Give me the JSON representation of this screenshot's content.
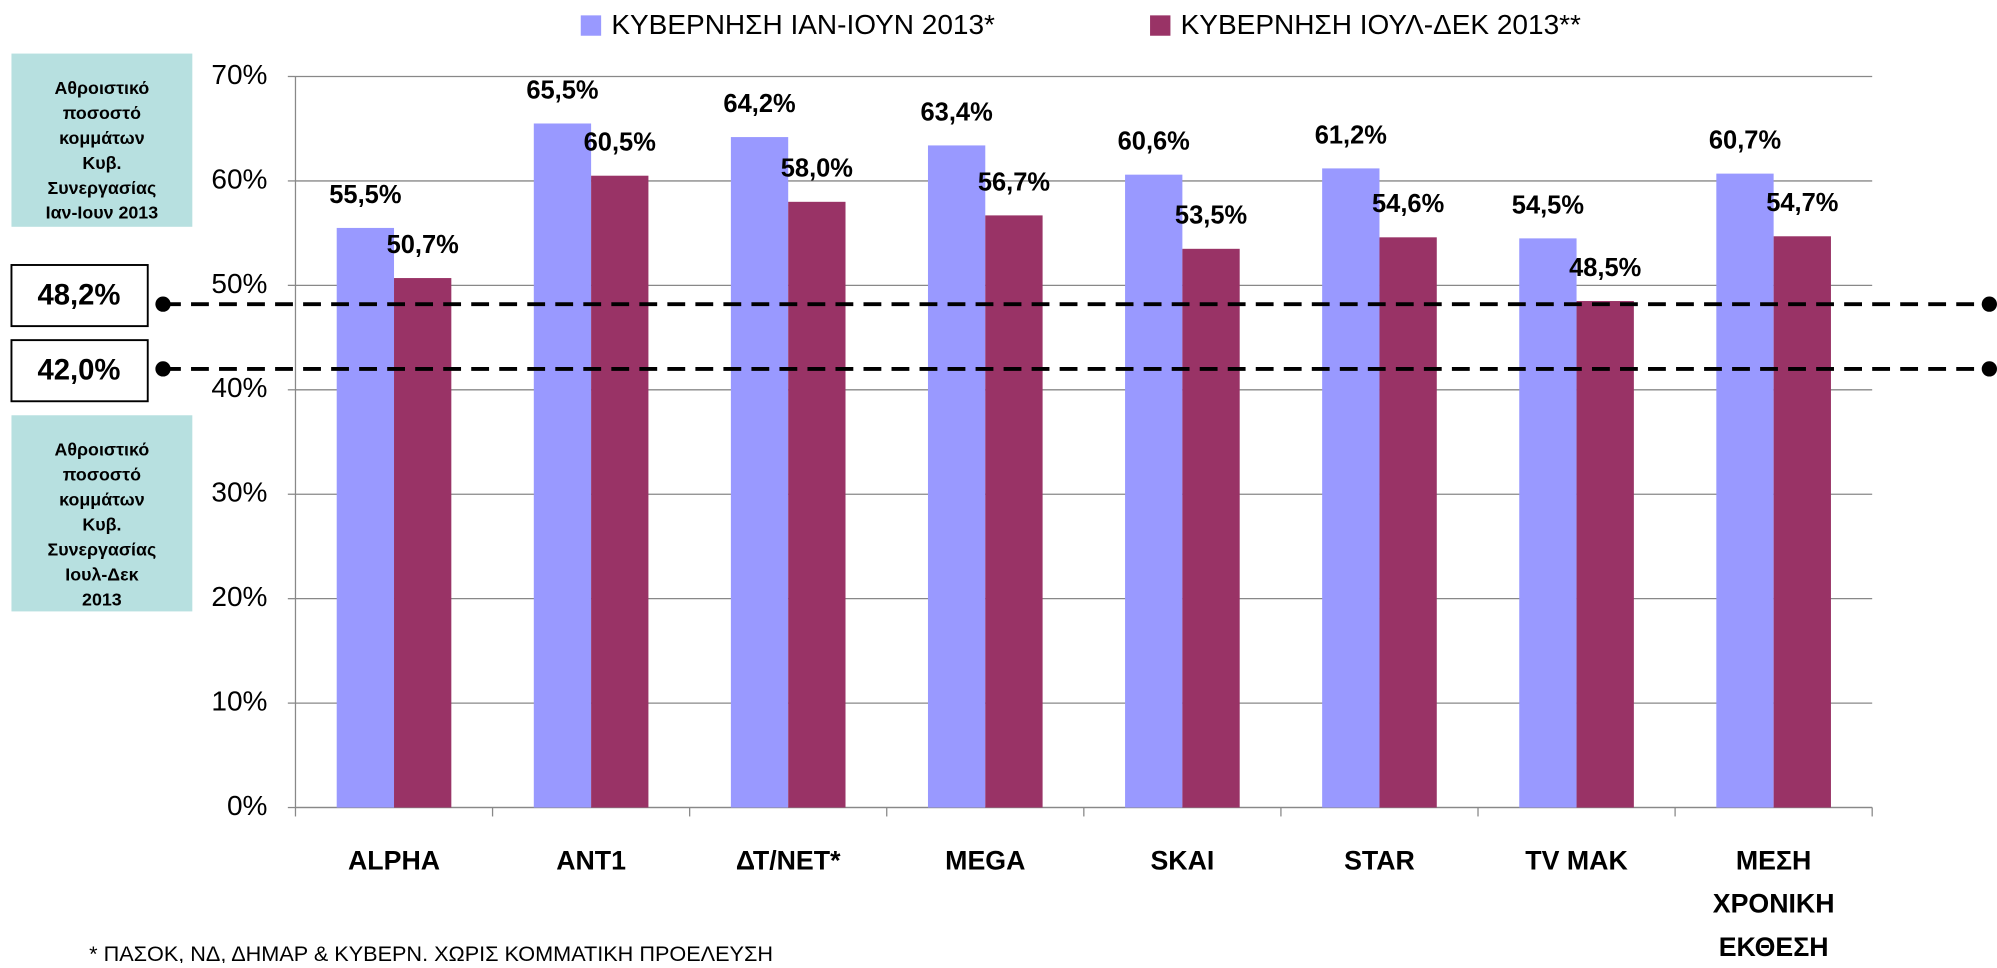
{
  "chart_data": {
    "type": "bar",
    "categories": [
      "ALPHA",
      "ANT1",
      "ΔΤ/ΝΕΤ*",
      "MEGA",
      "SKAI",
      "STAR",
      "TV MAK",
      "ΜΕΣΗ ΧΡΟΝΙΚΗ ΕΚΘΕΣΗ"
    ],
    "series": [
      {
        "name": "ΚΥΒΕΡΝΗΣΗ ΙΑΝ-ΙΟΥΝ 2013*",
        "color": "#9999ff",
        "values": [
          55.5,
          65.5,
          64.2,
          63.4,
          60.6,
          61.2,
          54.5,
          60.7
        ],
        "value_labels": [
          "55,5%",
          "65,5%",
          "64,2%",
          "63,4%",
          "60,6%",
          "61,2%",
          "54,5%",
          "60,7%"
        ]
      },
      {
        "name": "ΚΥΒΕΡΝΗΣΗ ΙΟΥΛ-ΔΕΚ 2013**",
        "color": "#993366",
        "values": [
          50.7,
          60.5,
          58.0,
          56.7,
          53.5,
          54.6,
          48.5,
          54.7
        ],
        "value_labels": [
          "50,7%",
          "60,5%",
          "58,0%",
          "56,7%",
          "53,5%",
          "54,6%",
          "48,5%",
          "54,7%"
        ]
      }
    ],
    "ylim": [
      0,
      70
    ],
    "yticks": [
      {
        "value": 0,
        "label": "0%"
      },
      {
        "value": 10,
        "label": "10%"
      },
      {
        "value": 20,
        "label": "20%"
      },
      {
        "value": 30,
        "label": "30%"
      },
      {
        "value": 40,
        "label": "40%"
      },
      {
        "value": 50,
        "label": "50%"
      },
      {
        "value": 60,
        "label": "60%"
      },
      {
        "value": 70,
        "label": "70%"
      }
    ],
    "grid": true,
    "legend": "top",
    "reference_lines": [
      {
        "value": 48.2,
        "label": "48,2%",
        "note": [
          "Αθροιστικό",
          "ποσοστό",
          "κομμάτων",
          "Κυβ.",
          "Συνεργασίας",
          "Ιαν-Ιουν 2013"
        ]
      },
      {
        "value": 42.0,
        "label": "42,0%",
        "note": [
          "Αθροιστικό",
          "ποσοστό",
          "κομμάτων",
          "Κυβ.",
          "Συνεργασίας",
          "Ιουλ-Δεκ",
          "2013"
        ]
      }
    ],
    "footnote": "* ΠΑΣΟΚ, ΝΔ, ΔΗΜΑΡ & ΚΥΒΕΡΝ. ΧΩΡΙΣ ΚΟΜΜΑΤΙΚΗ ΠΡΟΕΛΕΥΣΗ"
  }
}
